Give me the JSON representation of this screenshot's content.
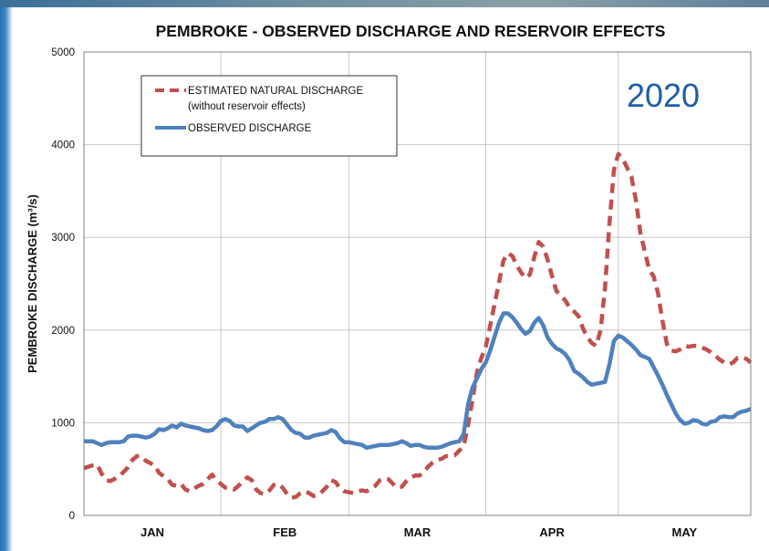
{
  "chart_data": {
    "type": "line",
    "title": "PEMBROKE - OBSERVED DISCHARGE AND RESERVOIR EFFECTS",
    "ylabel": "PEMBROKE DISCHARGE (m³/s)",
    "xlabel": "",
    "year_label": "2020",
    "ylim": [
      0,
      5000
    ],
    "yticks": [
      0,
      1000,
      2000,
      3000,
      4000,
      5000
    ],
    "xlim": [
      0,
      151
    ],
    "month_boundaries": [
      0,
      31,
      60,
      91,
      121,
      151
    ],
    "months": [
      "JAN",
      "FEB",
      "MAR",
      "APR",
      "MAY"
    ],
    "grid": true,
    "legend_position": "top-left",
    "legend": {
      "natural_line1": "ESTIMATED NATURAL DISCHARGE",
      "natural_line2": "(without reservoir effects)",
      "observed": "OBSERVED DISCHARGE"
    },
    "series": [
      {
        "name": "ESTIMATED NATURAL DISCHARGE",
        "color": "#c0504d",
        "style": "dashed",
        "points": [
          [
            0,
            510
          ],
          [
            2,
            540
          ],
          [
            3,
            550
          ],
          [
            4,
            450
          ],
          [
            5,
            380
          ],
          [
            6,
            370
          ],
          [
            8,
            420
          ],
          [
            10,
            520
          ],
          [
            11,
            600
          ],
          [
            12,
            640
          ],
          [
            13,
            640
          ],
          [
            14,
            590
          ],
          [
            16,
            540
          ],
          [
            17,
            460
          ],
          [
            19,
            390
          ],
          [
            20,
            330
          ],
          [
            21,
            320
          ],
          [
            22,
            340
          ],
          [
            23,
            280
          ],
          [
            24,
            260
          ],
          [
            25,
            290
          ],
          [
            26,
            320
          ],
          [
            27,
            340
          ],
          [
            28,
            390
          ],
          [
            29,
            440
          ],
          [
            30,
            380
          ],
          [
            31,
            340
          ],
          [
            32,
            300
          ],
          [
            33,
            300
          ],
          [
            34,
            280
          ],
          [
            35,
            320
          ],
          [
            36,
            370
          ],
          [
            37,
            410
          ],
          [
            38,
            380
          ],
          [
            39,
            280
          ],
          [
            40,
            240
          ],
          [
            41,
            230
          ],
          [
            42,
            270
          ],
          [
            43,
            330
          ],
          [
            44,
            340
          ],
          [
            45,
            300
          ],
          [
            46,
            230
          ],
          [
            47,
            190
          ],
          [
            48,
            200
          ],
          [
            49,
            240
          ],
          [
            50,
            260
          ],
          [
            51,
            240
          ],
          [
            52,
            210
          ],
          [
            53,
            220
          ],
          [
            54,
            260
          ],
          [
            55,
            310
          ],
          [
            56,
            380
          ],
          [
            57,
            360
          ],
          [
            58,
            290
          ],
          [
            59,
            260
          ],
          [
            60,
            250
          ],
          [
            61,
            240
          ],
          [
            62,
            260
          ],
          [
            63,
            270
          ],
          [
            64,
            260
          ],
          [
            65,
            290
          ],
          [
            66,
            320
          ],
          [
            67,
            380
          ],
          [
            68,
            400
          ],
          [
            69,
            390
          ],
          [
            70,
            340
          ],
          [
            71,
            300
          ],
          [
            72,
            310
          ],
          [
            73,
            370
          ],
          [
            74,
            410
          ],
          [
            75,
            430
          ],
          [
            76,
            430
          ],
          [
            77,
            470
          ],
          [
            78,
            530
          ],
          [
            79,
            570
          ],
          [
            80,
            600
          ],
          [
            81,
            610
          ],
          [
            82,
            640
          ],
          [
            83,
            640
          ],
          [
            84,
            650
          ],
          [
            85,
            700
          ],
          [
            86,
            750
          ],
          [
            87,
            980
          ],
          [
            88,
            1250
          ],
          [
            89,
            1550
          ],
          [
            90,
            1700
          ],
          [
            91,
            1820
          ],
          [
            92,
            2050
          ],
          [
            93,
            2280
          ],
          [
            94,
            2520
          ],
          [
            95,
            2750
          ],
          [
            96,
            2830
          ],
          [
            97,
            2800
          ],
          [
            98,
            2700
          ],
          [
            99,
            2620
          ],
          [
            100,
            2560
          ],
          [
            101,
            2600
          ],
          [
            102,
            2790
          ],
          [
            103,
            2950
          ],
          [
            104,
            2900
          ],
          [
            105,
            2760
          ],
          [
            106,
            2580
          ],
          [
            107,
            2420
          ],
          [
            108,
            2370
          ],
          [
            109,
            2320
          ],
          [
            110,
            2240
          ],
          [
            111,
            2200
          ],
          [
            112,
            2150
          ],
          [
            113,
            2020
          ],
          [
            114,
            1920
          ],
          [
            115,
            1860
          ],
          [
            116,
            1830
          ],
          [
            117,
            2000
          ],
          [
            118,
            2450
          ],
          [
            119,
            3150
          ],
          [
            120,
            3720
          ],
          [
            121,
            3900
          ],
          [
            122,
            3850
          ],
          [
            123,
            3750
          ],
          [
            124,
            3650
          ],
          [
            125,
            3400
          ],
          [
            126,
            3050
          ],
          [
            127,
            2850
          ],
          [
            128,
            2650
          ],
          [
            129,
            2580
          ],
          [
            130,
            2400
          ],
          [
            131,
            2100
          ],
          [
            132,
            1850
          ],
          [
            133,
            1780
          ],
          [
            134,
            1770
          ],
          [
            135,
            1790
          ],
          [
            136,
            1830
          ],
          [
            137,
            1820
          ],
          [
            138,
            1830
          ],
          [
            139,
            1830
          ],
          [
            140,
            1810
          ],
          [
            141,
            1790
          ],
          [
            142,
            1760
          ],
          [
            143,
            1720
          ],
          [
            144,
            1680
          ],
          [
            145,
            1650
          ],
          [
            146,
            1630
          ],
          [
            147,
            1650
          ],
          [
            148,
            1700
          ],
          [
            149,
            1700
          ],
          [
            150,
            1690
          ],
          [
            151,
            1650
          ]
        ]
      },
      {
        "name": "OBSERVED DISCHARGE",
        "color": "#4f81bd",
        "style": "solid",
        "points": [
          [
            0,
            800
          ],
          [
            2,
            800
          ],
          [
            3,
            780
          ],
          [
            4,
            760
          ],
          [
            5,
            780
          ],
          [
            6,
            790
          ],
          [
            8,
            790
          ],
          [
            9,
            800
          ],
          [
            10,
            850
          ],
          [
            11,
            860
          ],
          [
            12,
            860
          ],
          [
            13,
            850
          ],
          [
            14,
            840
          ],
          [
            15,
            850
          ],
          [
            16,
            880
          ],
          [
            17,
            930
          ],
          [
            18,
            920
          ],
          [
            19,
            940
          ],
          [
            20,
            970
          ],
          [
            21,
            950
          ],
          [
            22,
            990
          ],
          [
            23,
            970
          ],
          [
            24,
            960
          ],
          [
            25,
            950
          ],
          [
            26,
            940
          ],
          [
            27,
            920
          ],
          [
            28,
            910
          ],
          [
            29,
            920
          ],
          [
            30,
            960
          ],
          [
            31,
            1020
          ],
          [
            32,
            1040
          ],
          [
            33,
            1020
          ],
          [
            34,
            970
          ],
          [
            35,
            960
          ],
          [
            36,
            960
          ],
          [
            37,
            910
          ],
          [
            38,
            940
          ],
          [
            39,
            970
          ],
          [
            40,
            1000
          ],
          [
            41,
            1010
          ],
          [
            42,
            1040
          ],
          [
            43,
            1040
          ],
          [
            44,
            1060
          ],
          [
            45,
            1040
          ],
          [
            46,
            980
          ],
          [
            47,
            920
          ],
          [
            48,
            890
          ],
          [
            49,
            880
          ],
          [
            50,
            840
          ],
          [
            51,
            840
          ],
          [
            52,
            860
          ],
          [
            53,
            870
          ],
          [
            54,
            880
          ],
          [
            55,
            890
          ],
          [
            56,
            920
          ],
          [
            57,
            900
          ],
          [
            58,
            830
          ],
          [
            59,
            790
          ],
          [
            60,
            790
          ],
          [
            61,
            780
          ],
          [
            62,
            770
          ],
          [
            63,
            760
          ],
          [
            64,
            730
          ],
          [
            65,
            740
          ],
          [
            66,
            750
          ],
          [
            67,
            760
          ],
          [
            68,
            760
          ],
          [
            69,
            760
          ],
          [
            70,
            770
          ],
          [
            71,
            780
          ],
          [
            72,
            800
          ],
          [
            73,
            780
          ],
          [
            74,
            750
          ],
          [
            75,
            760
          ],
          [
            76,
            760
          ],
          [
            77,
            740
          ],
          [
            78,
            730
          ],
          [
            79,
            730
          ],
          [
            80,
            730
          ],
          [
            81,
            740
          ],
          [
            82,
            760
          ],
          [
            83,
            780
          ],
          [
            84,
            790
          ],
          [
            85,
            800
          ],
          [
            86,
            880
          ],
          [
            87,
            1200
          ],
          [
            88,
            1380
          ],
          [
            89,
            1480
          ],
          [
            90,
            1580
          ],
          [
            91,
            1650
          ],
          [
            92,
            1780
          ],
          [
            93,
            1930
          ],
          [
            94,
            2080
          ],
          [
            95,
            2180
          ],
          [
            96,
            2180
          ],
          [
            97,
            2140
          ],
          [
            98,
            2080
          ],
          [
            99,
            2010
          ],
          [
            100,
            1960
          ],
          [
            101,
            1990
          ],
          [
            102,
            2080
          ],
          [
            103,
            2130
          ],
          [
            104,
            2050
          ],
          [
            105,
            1920
          ],
          [
            106,
            1850
          ],
          [
            107,
            1800
          ],
          [
            108,
            1780
          ],
          [
            109,
            1740
          ],
          [
            110,
            1670
          ],
          [
            111,
            1560
          ],
          [
            112,
            1530
          ],
          [
            113,
            1490
          ],
          [
            114,
            1440
          ],
          [
            115,
            1410
          ],
          [
            116,
            1420
          ],
          [
            117,
            1430
          ],
          [
            118,
            1440
          ],
          [
            119,
            1630
          ],
          [
            120,
            1880
          ],
          [
            121,
            1940
          ],
          [
            122,
            1920
          ],
          [
            123,
            1880
          ],
          [
            124,
            1840
          ],
          [
            125,
            1790
          ],
          [
            126,
            1730
          ],
          [
            127,
            1710
          ],
          [
            128,
            1690
          ],
          [
            129,
            1600
          ],
          [
            130,
            1510
          ],
          [
            131,
            1410
          ],
          [
            132,
            1300
          ],
          [
            133,
            1200
          ],
          [
            134,
            1100
          ],
          [
            135,
            1030
          ],
          [
            136,
            990
          ],
          [
            137,
            1000
          ],
          [
            138,
            1030
          ],
          [
            139,
            1020
          ],
          [
            140,
            990
          ],
          [
            141,
            980
          ],
          [
            142,
            1010
          ],
          [
            143,
            1020
          ],
          [
            144,
            1060
          ],
          [
            145,
            1070
          ],
          [
            146,
            1060
          ],
          [
            147,
            1060
          ],
          [
            148,
            1100
          ],
          [
            149,
            1120
          ],
          [
            150,
            1130
          ],
          [
            151,
            1150
          ]
        ]
      }
    ]
  }
}
